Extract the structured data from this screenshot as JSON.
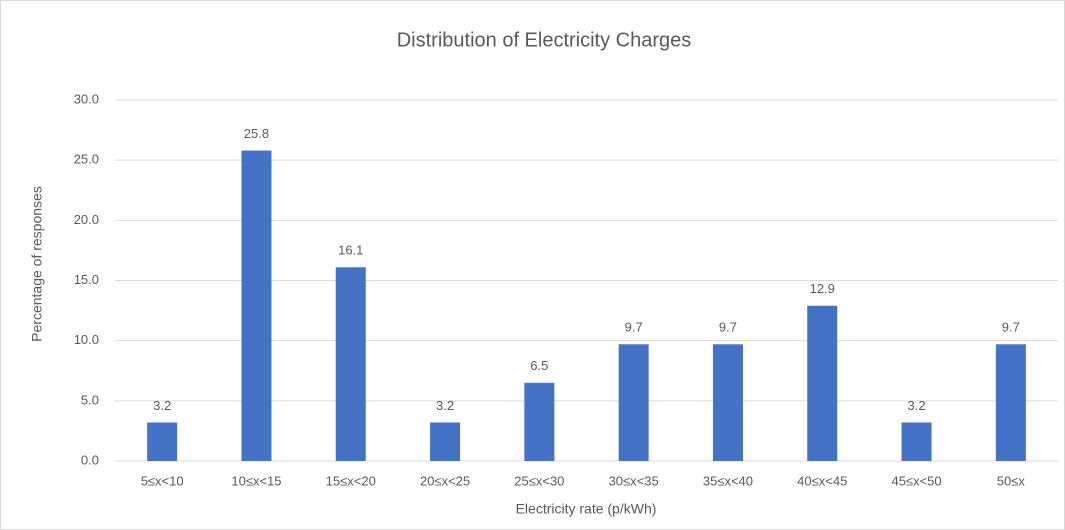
{
  "chart_data": {
    "type": "bar",
    "title": "Distribution of Electricity Charges",
    "x_label": "Electricity rate (p/kWh)",
    "y_label": "Percentage of responses",
    "categories": [
      "5≤x<10",
      "10≤x<15",
      "15≤x<20",
      "20≤x<25",
      "25≤x<30",
      "30≤x<35",
      "35≤x<40",
      "40≤x<45",
      "45≤x<50",
      "50≤x"
    ],
    "values": [
      3.2,
      25.8,
      16.1,
      3.2,
      6.5,
      9.7,
      9.7,
      12.9,
      3.2,
      9.7
    ],
    "color": "#4472c4",
    "ylim": [
      0,
      30
    ],
    "yticks": [
      {
        "value": 0,
        "label": "0.0"
      },
      {
        "value": 5,
        "label": "5.0"
      },
      {
        "value": 10,
        "label": "10.0"
      },
      {
        "value": 15,
        "label": "15.0"
      },
      {
        "value": 20,
        "label": "20.0"
      },
      {
        "value": 25,
        "label": "25.0"
      },
      {
        "value": 30,
        "label": "30.0"
      }
    ],
    "grid": true
  }
}
